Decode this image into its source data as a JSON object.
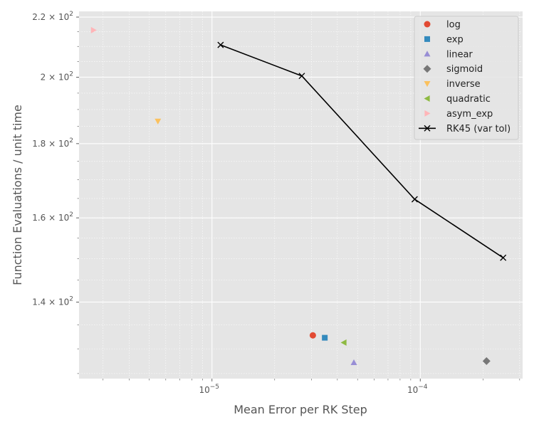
{
  "chart_data": {
    "type": "scatter",
    "title": "",
    "xlabel": "Mean Error per RK Step",
    "ylabel": "Function Evaluations / unit time",
    "xscale": "log",
    "yscale": "log",
    "xlim": [
      2.3e-06,
      0.00031
    ],
    "ylim": [
      124,
      222
    ],
    "grid": true,
    "legend_position": "top-right",
    "x_ticks": [
      {
        "value": 1e-05,
        "base": "10",
        "exp": "−5"
      },
      {
        "value": 0.0001,
        "base": "10",
        "exp": "−4"
      }
    ],
    "y_ticks": [
      {
        "value": 140,
        "mant": "1.4",
        "base": "10",
        "exp": "2"
      },
      {
        "value": 160,
        "mant": "1.6",
        "base": "10",
        "exp": "2"
      },
      {
        "value": 180,
        "mant": "1.8",
        "base": "10",
        "exp": "2"
      },
      {
        "value": 200,
        "mant": "2",
        "base": "10",
        "exp": "2"
      },
      {
        "value": 220,
        "mant": "2.2",
        "base": "10",
        "exp": "2"
      }
    ],
    "series": [
      {
        "name": "log",
        "marker": "circle",
        "color": "#E24A33",
        "points": [
          [
            3.05e-05,
            132.8
          ]
        ]
      },
      {
        "name": "exp",
        "marker": "square",
        "color": "#348ABD",
        "points": [
          [
            3.48e-05,
            132.3
          ]
        ]
      },
      {
        "name": "linear",
        "marker": "triangle-up",
        "color": "#988ED5",
        "points": [
          [
            4.8e-05,
            127.2
          ]
        ]
      },
      {
        "name": "sigmoid",
        "marker": "diamond",
        "color": "#777777",
        "points": [
          [
            0.000208,
            127.5
          ]
        ]
      },
      {
        "name": "inverse",
        "marker": "triangle-down",
        "color": "#FBC15E",
        "points": [
          [
            5.5e-06,
            186.5
          ]
        ]
      },
      {
        "name": "quadratic",
        "marker": "triangle-left",
        "color": "#8EBA42",
        "points": [
          [
            4.3e-05,
            131.3
          ]
        ]
      },
      {
        "name": "asym_exp",
        "marker": "triangle-right",
        "color": "#FFB5B8",
        "points": [
          [
            2.7e-06,
            215.5
          ]
        ]
      },
      {
        "name": "RK45 (var tol)",
        "marker": "x-line",
        "color": "#000000",
        "points": [
          [
            1.1e-05,
            210.5
          ],
          [
            2.7e-05,
            200.4
          ],
          [
            9.4e-05,
            164.8
          ],
          [
            0.00025,
            150.2
          ]
        ]
      }
    ]
  }
}
